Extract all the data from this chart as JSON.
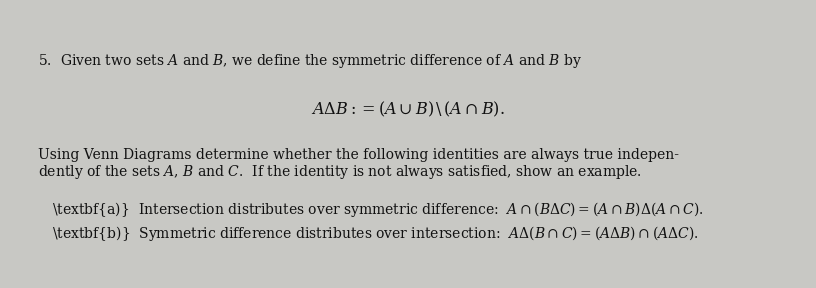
{
  "background_color": "#c8c8c4",
  "text_color": "#111111",
  "figsize": [
    8.16,
    2.88
  ],
  "dpi": 100,
  "line1": "5.  Given two sets $A$ and $B$, we define the symmetric difference of $A$ and $B$ by",
  "line2": "$A\\Delta B := (A\\cup B)\\,\\backslash\\,(A\\cap B).$",
  "line3a": "Using Venn Diagrams determine whether the following identities are always true indepen-",
  "line3b": "dently of the sets $A$, $B$ and $C$.  If the identity is not always satisfied, show an example.",
  "line4a": "\\textbf{a)}  Intersection distributes over symmetric difference:  $A\\cap(B\\Delta C) = (A\\cap B)\\Delta(A\\cap C).$",
  "line4b": "\\textbf{b)}  Symmetric difference distributes over intersection:  $A\\Delta(B\\cap C) = (A\\Delta B)\\cap(A\\Delta C).$",
  "fs_body": 10.0,
  "fs_math": 11.5
}
